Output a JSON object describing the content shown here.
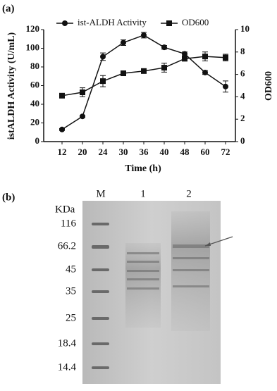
{
  "panel_labels": [
    "(a)",
    "(b)"
  ],
  "chart_data": {
    "type": "line",
    "categories": [
      "12",
      "20",
      "24",
      "30",
      "36",
      "40",
      "48",
      "60",
      "72"
    ],
    "xlabel": "Time (h)",
    "ylabel": "istALDH Activity (U/mL)",
    "y2label": "OD600",
    "ylim": [
      0,
      120
    ],
    "yticks": [
      0,
      20,
      40,
      60,
      80,
      100,
      120
    ],
    "y2lim": [
      0,
      10
    ],
    "y2ticks": [
      0,
      2,
      4,
      6,
      8,
      10
    ],
    "legend": "top",
    "series": [
      {
        "name": "ist-ALDH Activity",
        "color": "#111111",
        "marker": "circle",
        "values": [
          13,
          27,
          91,
          106,
          114,
          101,
          94,
          74,
          59
        ],
        "errors": [
          1,
          1,
          4,
          3,
          3,
          2,
          2,
          2,
          6
        ]
      },
      {
        "name": "OD600",
        "color": "#111111",
        "marker": "square",
        "axis": "y2",
        "values": [
          4.1,
          4.4,
          5.4,
          6.1,
          6.3,
          6.6,
          7.4,
          7.6,
          7.5
        ],
        "errors": [
          0.2,
          0.4,
          0.5,
          0.1,
          0.1,
          0.4,
          0.2,
          0.4,
          0.3
        ]
      }
    ]
  },
  "gel": {
    "lane_labels": [
      "M",
      "1",
      "2"
    ],
    "unit": "KDa",
    "markers": [
      116,
      66.2,
      45,
      35,
      25,
      18.4,
      14.4
    ]
  }
}
